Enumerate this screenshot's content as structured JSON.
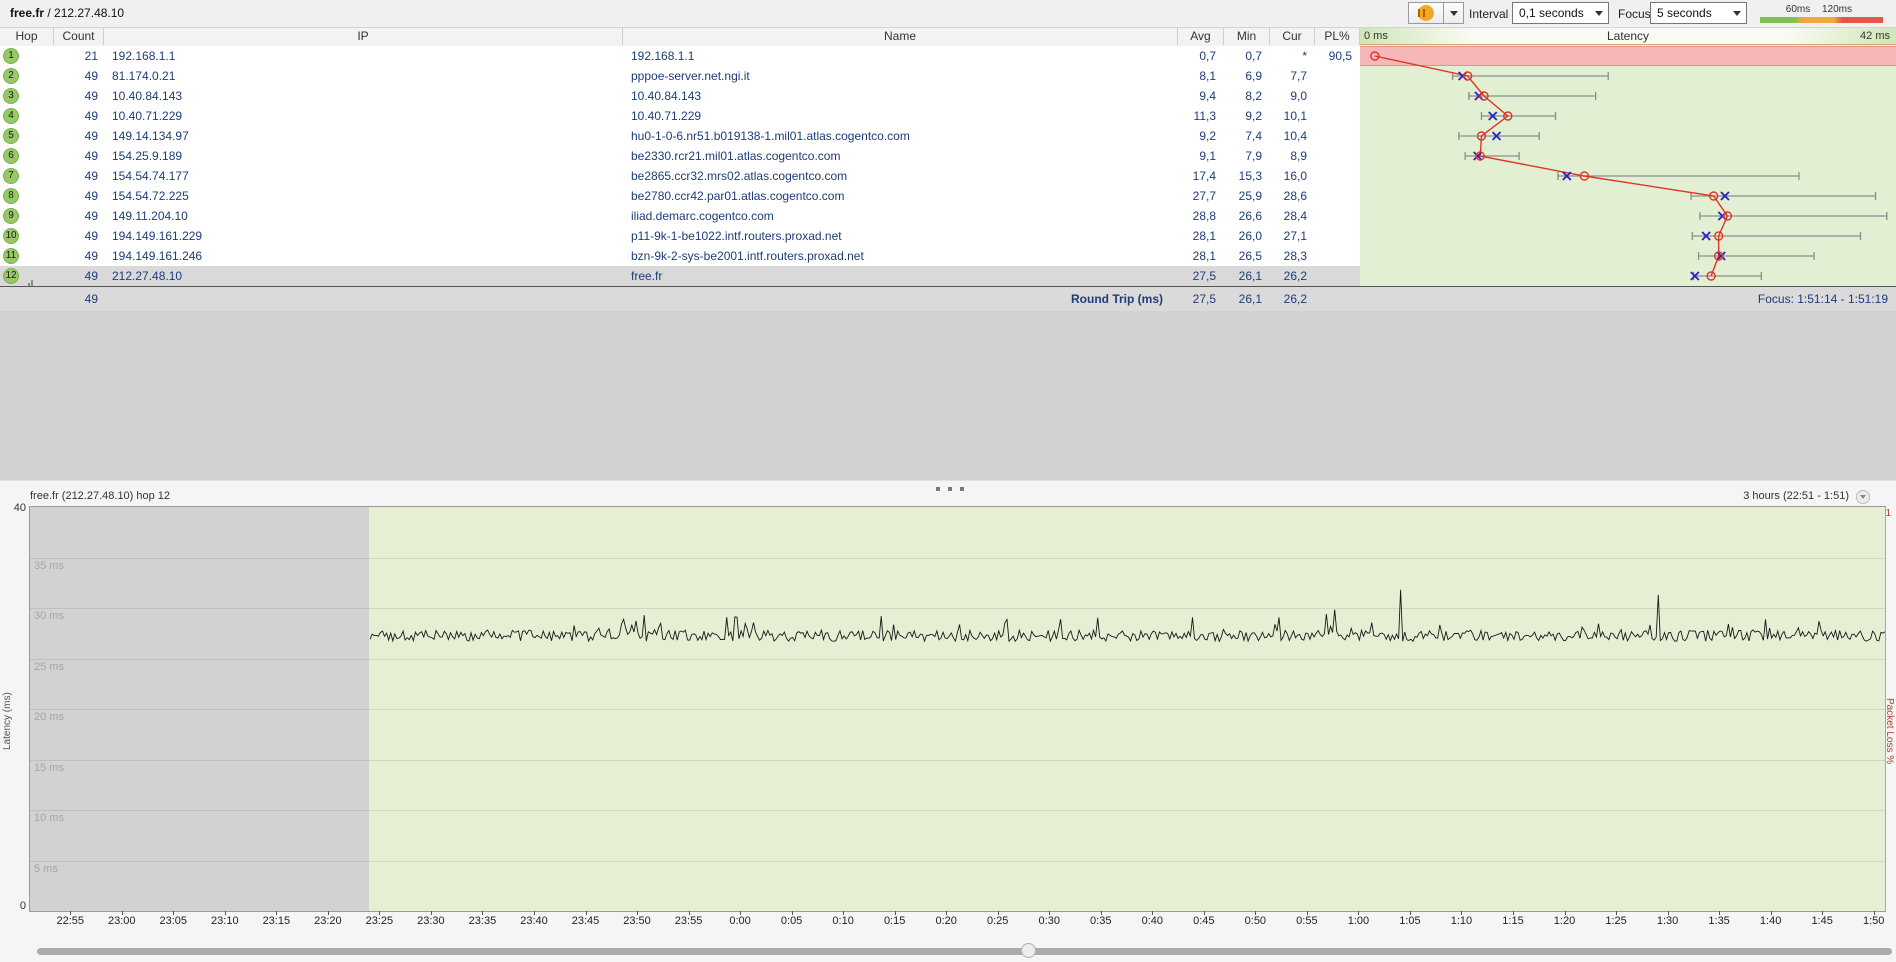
{
  "header": {
    "target_name": "free.fr",
    "separator": " / ",
    "target_ip": "212.27.48.10"
  },
  "toolbar": {
    "interval_label": "Interval",
    "interval_value": "0,1 seconds",
    "focus_label": "Focus",
    "focus_value": "5 seconds",
    "legend": {
      "labels": [
        "60ms",
        "120ms"
      ],
      "colors": [
        "#7fc24f",
        "#efa93d",
        "#e2574b"
      ]
    }
  },
  "table": {
    "columns": {
      "hop": "Hop",
      "count": "Count",
      "ip": "IP",
      "name": "Name",
      "avg": "Avg",
      "min": "Min",
      "cur": "Cur",
      "pl": "PL%"
    },
    "latency_header": {
      "left": "0 ms",
      "center": "Latency",
      "right": "42 ms"
    },
    "rows": [
      {
        "hop": "1",
        "count": "21",
        "ip": "192.168.1.1",
        "name": "192.168.1.1",
        "avg": "0,7",
        "min": "0,7",
        "cur": "*",
        "pl": "90,5",
        "packet_loss": true
      },
      {
        "hop": "2",
        "count": "49",
        "ip": "81.174.0.21",
        "name": "pppoe-server.net.ngi.it",
        "avg": "8,1",
        "min": "6,9",
        "cur": "7,7",
        "pl": ""
      },
      {
        "hop": "3",
        "count": "49",
        "ip": "10.40.84.143",
        "name": "10.40.84.143",
        "avg": "9,4",
        "min": "8,2",
        "cur": "9,0",
        "pl": ""
      },
      {
        "hop": "4",
        "count": "49",
        "ip": "10.40.71.229",
        "name": "10.40.71.229",
        "avg": "11,3",
        "min": "9,2",
        "cur": "10,1",
        "pl": ""
      },
      {
        "hop": "5",
        "count": "49",
        "ip": "149.14.134.97",
        "name": "hu0-1-0-6.nr51.b019138-1.mil01.atlas.cogentco.com",
        "avg": "9,2",
        "min": "7,4",
        "cur": "10,4",
        "pl": ""
      },
      {
        "hop": "6",
        "count": "49",
        "ip": "154.25.9.189",
        "name": "be2330.rcr21.mil01.atlas.cogentco.com",
        "avg": "9,1",
        "min": "7,9",
        "cur": "8,9",
        "pl": ""
      },
      {
        "hop": "7",
        "count": "49",
        "ip": "154.54.74.177",
        "name": "be2865.ccr32.mrs02.atlas.cogentco.com",
        "avg": "17,4",
        "min": "15,3",
        "cur": "16,0",
        "pl": ""
      },
      {
        "hop": "8",
        "count": "49",
        "ip": "154.54.72.225",
        "name": "be2780.ccr42.par01.atlas.cogentco.com",
        "avg": "27,7",
        "min": "25,9",
        "cur": "28,6",
        "pl": ""
      },
      {
        "hop": "9",
        "count": "49",
        "ip": "149.11.204.10",
        "name": "iliad.demarc.cogentco.com",
        "avg": "28,8",
        "min": "26,6",
        "cur": "28,4",
        "pl": ""
      },
      {
        "hop": "10",
        "count": "49",
        "ip": "194.149.161.229",
        "name": "p11-9k-1-be1022.intf.routers.proxad.net",
        "avg": "28,1",
        "min": "26,0",
        "cur": "27,1",
        "pl": ""
      },
      {
        "hop": "11",
        "count": "49",
        "ip": "194.149.161.246",
        "name": "bzn-9k-2-sys-be2001.intf.routers.proxad.net",
        "avg": "28,1",
        "min": "26,5",
        "cur": "28,3",
        "pl": ""
      },
      {
        "hop": "12",
        "count": "49",
        "ip": "212.27.48.10",
        "name": "free.fr",
        "avg": "27,5",
        "min": "26,1",
        "cur": "26,2",
        "pl": "",
        "selected": true,
        "chart_icon": true
      }
    ],
    "round_trip": {
      "count": "49",
      "label": "Round Trip (ms)",
      "avg": "27,5",
      "min": "26,1",
      "cur": "26,2",
      "focus": "Focus: 1:51:14 - 1:51:19"
    }
  },
  "lower": {
    "title": "free.fr (212.27.48.10) hop 12",
    "range": "3 hours (22:51 - 1:51)",
    "ymax": "40",
    "ymin": "0",
    "grid_labels": [
      "35 ms",
      "30 ms",
      "25 ms",
      "20 ms",
      "15 ms",
      "10 ms",
      "5 ms"
    ],
    "y_axis_label": "Latency (ms)",
    "right_axis_label": "Packet Loss %",
    "right_axis_top": "1",
    "time_labels": [
      "22:55",
      "23:00",
      "23:05",
      "23:10",
      "23:15",
      "23:20",
      "23:25",
      "23:30",
      "23:35",
      "23:40",
      "23:45",
      "23:50",
      "23:55",
      "0:00",
      "0:05",
      "0:10",
      "0:15",
      "0:20",
      "0:25",
      "0:30",
      "0:35",
      "0:40",
      "0:45",
      "0:50",
      "0:55",
      "1:00",
      "1:05",
      "1:10",
      "1:15",
      "1:20",
      "1:25",
      "1:30",
      "1:35",
      "1:40",
      "1:45",
      "1:50"
    ]
  },
  "chart_data": [
    {
      "type": "scatter",
      "title": "Latency",
      "xlabel": "Latency (ms)",
      "x_range": [
        0,
        42
      ],
      "x_min_label": "0 ms",
      "x_max_label": "42 ms",
      "legend_note": "red circle = avg, blue x = current, gray bar = min-max range",
      "hops": [
        {
          "hop": 1,
          "avg": 0.7,
          "min": 0.7,
          "max": null,
          "cur": null,
          "loss_pct": 90.5
        },
        {
          "hop": 2,
          "avg": 8.1,
          "min": 6.9,
          "max": 19.3,
          "cur": 7.7
        },
        {
          "hop": 3,
          "avg": 9.4,
          "min": 8.2,
          "max": 18.3,
          "cur": 9.0
        },
        {
          "hop": 4,
          "avg": 11.3,
          "min": 9.2,
          "max": 15.1,
          "cur": 10.1
        },
        {
          "hop": 5,
          "avg": 9.2,
          "min": 7.4,
          "max": 13.8,
          "cur": 10.4
        },
        {
          "hop": 6,
          "avg": 9.1,
          "min": 7.9,
          "max": 12.2,
          "cur": 8.9
        },
        {
          "hop": 7,
          "avg": 17.4,
          "min": 15.3,
          "max": 34.5,
          "cur": 16.0
        },
        {
          "hop": 8,
          "avg": 27.7,
          "min": 25.9,
          "max": 40.6,
          "cur": 28.6
        },
        {
          "hop": 9,
          "avg": 28.8,
          "min": 26.6,
          "max": 41.5,
          "cur": 28.4
        },
        {
          "hop": 10,
          "avg": 28.1,
          "min": 26.0,
          "max": 39.4,
          "cur": 27.1
        },
        {
          "hop": 11,
          "avg": 28.1,
          "min": 26.5,
          "max": 35.7,
          "cur": 28.3
        },
        {
          "hop": 12,
          "avg": 27.5,
          "min": 26.1,
          "max": 31.5,
          "cur": 26.2
        }
      ]
    },
    {
      "type": "line",
      "title": "free.fr (212.27.48.10) hop 12",
      "window": "3 hours (22:51 - 1:51)",
      "ylabel": "Latency (ms)",
      "ylim": [
        0,
        40
      ],
      "y2label": "Packet Loss %",
      "y2lim": [
        0,
        1
      ],
      "x_start": "22:51",
      "x_end": "1:51",
      "data_start_min": 33,
      "data_end_min": 180,
      "baseline_ms": 27.0,
      "noise_range_ms": [
        26.6,
        29.5
      ],
      "spikes": [
        {
          "minute": 133,
          "ms": 31.8
        },
        {
          "minute": 158,
          "ms": 31.3
        }
      ],
      "grid_values": [
        35,
        30,
        25,
        20,
        15,
        10,
        5
      ]
    }
  ]
}
